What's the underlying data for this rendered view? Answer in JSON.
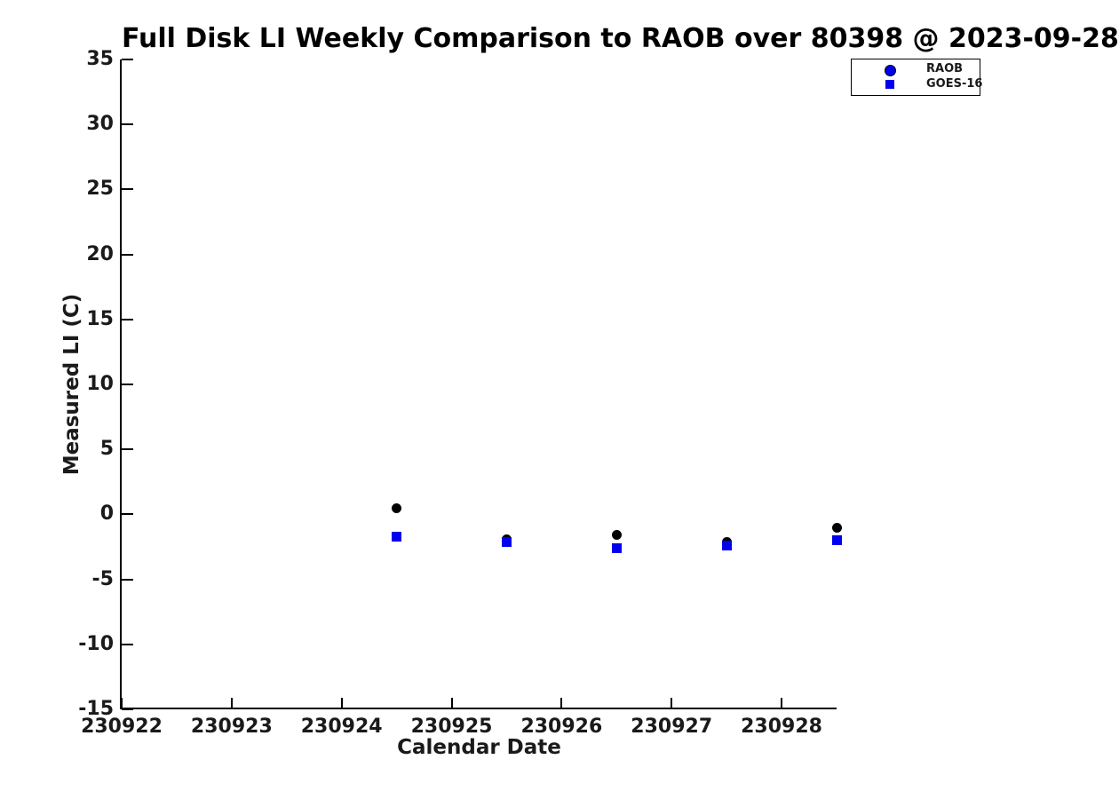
{
  "title": "Full Disk LI Weekly Comparison to RAOB over 80398 @ 2023-09-28",
  "colors": {
    "blue": "#0000ee",
    "black": "#000000",
    "tick_text": "#1a1a1a",
    "background": "#ffffff"
  },
  "legend": {
    "entries": [
      {
        "label": "RAOB",
        "marker": "circle",
        "face": "#0000ee",
        "edge": "#000000"
      },
      {
        "label": "GOES-16",
        "marker": "square",
        "face": "#0000ee"
      }
    ]
  },
  "chart_data": {
    "type": "scatter",
    "title": "Full Disk LI Weekly Comparison to RAOB over 80398 @ 2023-09-28",
    "xlabel": "Calendar Date",
    "ylabel": "Measured LI (C)",
    "xlim": [
      230922,
      230928.5
    ],
    "ylim": [
      -15,
      35
    ],
    "x_ticks": [
      230922,
      230923,
      230924,
      230925,
      230926,
      230927,
      230928
    ],
    "x_tick_labels": [
      "230922",
      "230923",
      "230924",
      "230925",
      "230926",
      "230927",
      "230928"
    ],
    "y_ticks": [
      -15,
      -10,
      -5,
      0,
      5,
      10,
      15,
      20,
      25,
      30,
      35
    ],
    "y_tick_labels": [
      "-15",
      "-10",
      "-5",
      "0",
      "5",
      "10",
      "15",
      "20",
      "25",
      "30",
      "35"
    ],
    "grid": false,
    "legend_position": "top-right-outside",
    "series": [
      {
        "name": "RAOB",
        "marker": "circle",
        "color": "#000000",
        "x": [
          230924.5,
          230925.5,
          230926.5,
          230927.5,
          230928.5
        ],
        "y": [
          0.5,
          -1.9,
          -1.6,
          -2.1,
          -1.0
        ]
      },
      {
        "name": "GOES-16",
        "marker": "square",
        "color": "#0000ee",
        "x": [
          230924.5,
          230925.5,
          230926.5,
          230927.5,
          230928.5
        ],
        "y": [
          -1.7,
          -2.1,
          -2.6,
          -2.4,
          -2.0
        ]
      }
    ]
  }
}
